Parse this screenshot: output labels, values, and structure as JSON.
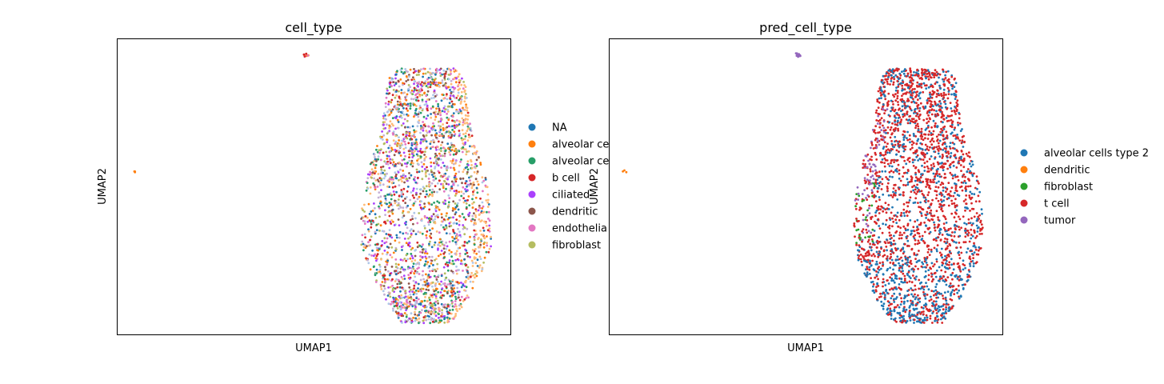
{
  "chart_data": [
    {
      "type": "scatter",
      "title": "cell_type",
      "xlabel": "UMAP1",
      "ylabel": "UMAP2",
      "grid": false,
      "legend_placement": "right-outside",
      "legend": [
        {
          "label": "NA",
          "color": "#1f77b4"
        },
        {
          "label": "alveolar ce",
          "color": "#ff7f0e"
        },
        {
          "label": "alveolar ce",
          "color": "#279e68"
        },
        {
          "label": "b cell",
          "color": "#d62728"
        },
        {
          "label": "ciliated",
          "color": "#aa40fc"
        },
        {
          "label": "dendritic",
          "color": "#8c564b"
        },
        {
          "label": "endothelia",
          "color": "#e377c2"
        },
        {
          "label": "fibroblast",
          "color": "#b5bd61"
        }
      ],
      "point_palette": [
        "#279e68",
        "#ff7f0e",
        "#e377c2",
        "#b5bd61",
        "#d62728",
        "#1f77b4",
        "#ffbb78",
        "#8c564b",
        "#aec7e8",
        "#aa40fc",
        "#c5b0d5"
      ],
      "main_cluster": {
        "x_range": [
          0.62,
          0.95
        ],
        "y_range": [
          0.04,
          0.9
        ]
      },
      "small_clusters": [
        {
          "x": 0.48,
          "y": 0.945,
          "colors": [
            "#ff7f0e",
            "#d62728",
            "#e377c2"
          ]
        },
        {
          "x": 0.04,
          "y": 0.555,
          "colors": [
            "#ff7f0e"
          ]
        }
      ]
    },
    {
      "type": "scatter",
      "title": "pred_cell_type",
      "xlabel": "UMAP1",
      "ylabel": "UMAP2",
      "grid": false,
      "legend_placement": "right-outside",
      "legend": [
        {
          "label": "alveolar cells type 2",
          "color": "#1f77b4"
        },
        {
          "label": "dendritic",
          "color": "#ff7f0e"
        },
        {
          "label": "fibroblast",
          "color": "#2ca02c"
        },
        {
          "label": "t cell",
          "color": "#d62728"
        },
        {
          "label": "tumor",
          "color": "#9467bd"
        }
      ],
      "main_cluster": {
        "x_range": [
          0.62,
          0.95
        ],
        "y_range": [
          0.04,
          0.9
        ]
      },
      "small_clusters": [
        {
          "x": 0.48,
          "y": 0.945,
          "colors": [
            "#9467bd"
          ]
        },
        {
          "x": 0.04,
          "y": 0.555,
          "colors": [
            "#ff7f0e"
          ]
        }
      ]
    }
  ]
}
